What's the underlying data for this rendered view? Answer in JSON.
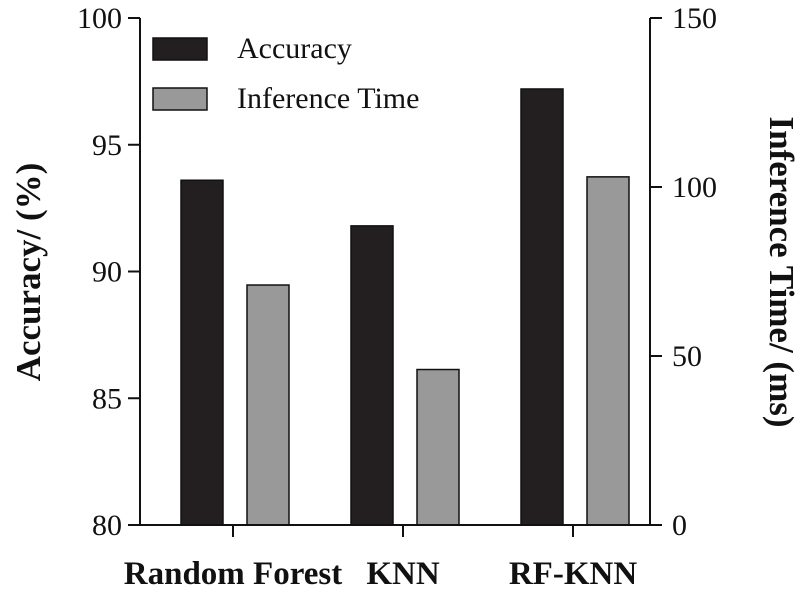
{
  "chart_data": {
    "type": "bar",
    "categories": [
      "Random Forest",
      "KNN",
      "RF-KNN"
    ],
    "series": [
      {
        "name": "Accuracy",
        "axis": "left",
        "color": "#231f20",
        "values": [
          93.6,
          91.8,
          97.2
        ]
      },
      {
        "name": "Inference Time",
        "axis": "right",
        "color": "#999999",
        "values": [
          71,
          46,
          103
        ]
      }
    ],
    "ylabel": "Accuracy/ (%)",
    "y2label": "Inference Time/ (ms)",
    "xlabel": "",
    "ylim": [
      80,
      100
    ],
    "y2lim": [
      0,
      150
    ],
    "yticks": [
      "80",
      "85",
      "90",
      "95",
      "100"
    ],
    "y2ticks": [
      "0",
      "50",
      "100",
      "150"
    ],
    "legend_position": "top-left",
    "grid": false
  }
}
